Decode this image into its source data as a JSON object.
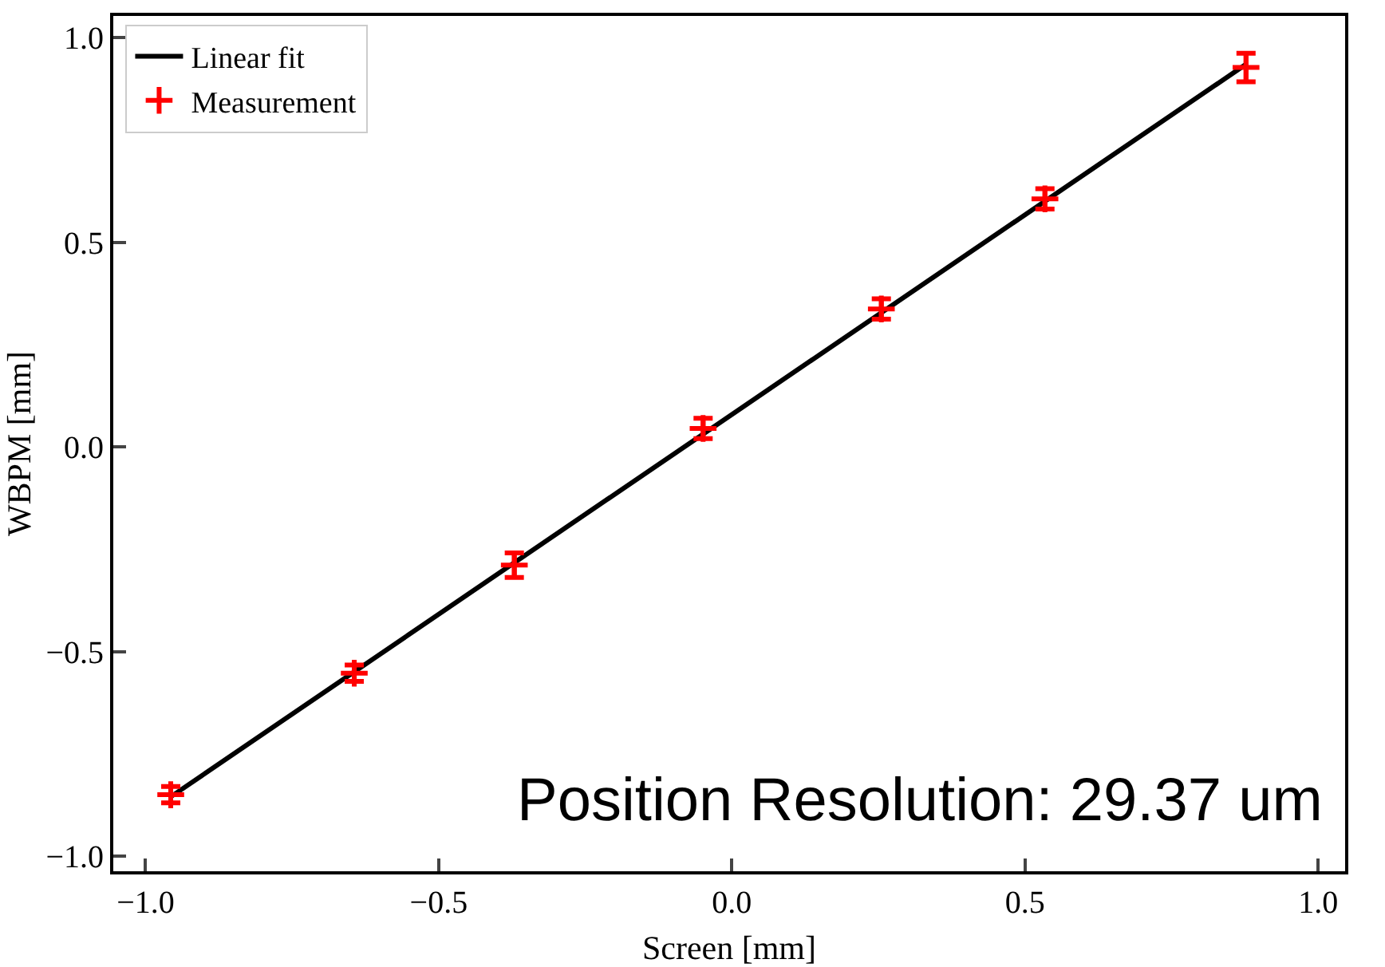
{
  "chart_data": {
    "type": "scatter",
    "xlabel": "Screen [mm]",
    "ylabel": "WBPM [mm]",
    "xlim": [
      -1.055,
      1.046
    ],
    "xticks": [
      {
        "value": -1,
        "label": "−1.0"
      },
      {
        "value": -0.5,
        "label": "−0.5"
      },
      {
        "value": 0,
        "label": "0.0"
      },
      {
        "value": 0.5,
        "label": "0.5"
      },
      {
        "value": 1,
        "label": "1.0"
      }
    ],
    "ylim": [
      -1.037,
      1.053
    ],
    "yticks": [
      {
        "value": -1,
        "label": "−1.0"
      },
      {
        "value": -0.5,
        "label": "−0.5"
      },
      {
        "value": 0,
        "label": "0.0"
      },
      {
        "value": 0.5,
        "label": "0.5"
      },
      {
        "value": 1,
        "label": "1.0"
      }
    ],
    "grid": false,
    "legend": "top left",
    "marker": "cross",
    "series": [
      {
        "name": "Linear fit",
        "type": "line",
        "color": "#000000",
        "x": [
          -0.957,
          0.877
        ],
        "values": [
          -0.855,
          0.935
        ],
        "line_style": "solid"
      },
      {
        "name": "Measurement",
        "color": "#ff0000",
        "x": [
          -0.957,
          -0.644,
          -0.371,
          -0.049,
          0.255,
          0.534,
          0.877
        ],
        "values": [
          -0.85,
          -0.553,
          -0.289,
          0.045,
          0.337,
          0.606,
          0.927
        ],
        "errors": [
          0.02,
          0.02,
          0.03,
          0.025,
          0.025,
          0.025,
          0.035
        ]
      }
    ],
    "annotations": [
      "Position Resolution: 29.37 um"
    ]
  }
}
